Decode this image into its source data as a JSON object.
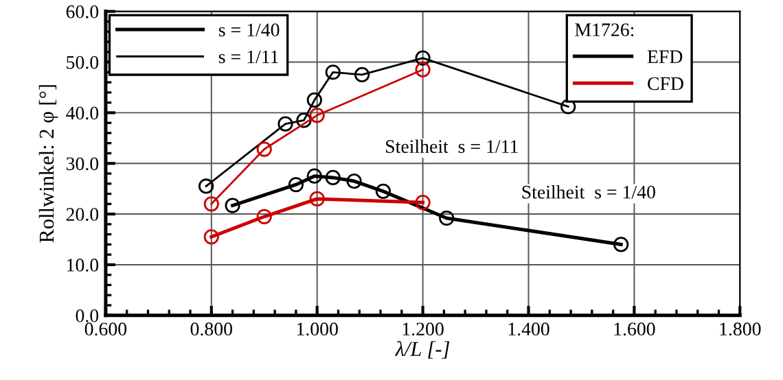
{
  "chart_data": {
    "type": "line",
    "xlabel": "λ/L [-]",
    "ylabel": "Rollwinkel: 2 φ [°]",
    "legend_title": "M1726:",
    "xlim": [
      0.6,
      1.8
    ],
    "xticks": [
      {
        "value": 0.6,
        "label": "0.600"
      },
      {
        "value": 0.8,
        "label": "0.800"
      },
      {
        "value": 1.0,
        "label": "1.000"
      },
      {
        "value": 1.2,
        "label": "1.200"
      },
      {
        "value": 1.4,
        "label": "1.400"
      },
      {
        "value": 1.6,
        "label": "1.600"
      },
      {
        "value": 1.8,
        "label": "1.800"
      }
    ],
    "ylim": [
      0,
      60
    ],
    "yticks": [
      {
        "value": 0,
        "label": "0.0"
      },
      {
        "value": 10,
        "label": "10.0"
      },
      {
        "value": 20,
        "label": "20.0"
      },
      {
        "value": 30,
        "label": "30.0"
      },
      {
        "value": 40,
        "label": "40.0"
      },
      {
        "value": 50,
        "label": "50.0"
      },
      {
        "value": 60,
        "label": "60.0"
      }
    ],
    "grid": true,
    "legend": "top left",
    "marker": "circle",
    "line_style": "solid",
    "series": [
      {
        "name": "s = 1/40",
        "color": "#000000",
        "x": [
          0.84,
          0.96,
          0.995,
          1.03,
          1.07,
          1.125,
          1.245,
          1.575
        ],
        "values": [
          21.7,
          25.8,
          27.5,
          27.2,
          26.5,
          24.5,
          19.2,
          14.0
        ]
      },
      {
        "name": "s = 1/11",
        "color": "#000000",
        "x": [
          0.79,
          0.94,
          0.975,
          0.995,
          1.03,
          1.085,
          1.2,
          1.475
        ],
        "values": [
          25.5,
          37.8,
          38.5,
          42.5,
          48.0,
          47.5,
          50.8,
          41.2
        ]
      },
      {
        "color": "#cc0000",
        "x": [
          0.8,
          0.9,
          1.0,
          1.2
        ],
        "values": [
          15.5,
          19.5,
          23.0,
          22.3
        ]
      },
      {
        "color": "#cc0000",
        "x": [
          0.8,
          0.9,
          1.0,
          1.2
        ],
        "values": [
          22.0,
          32.8,
          39.5,
          48.5
        ]
      }
    ],
    "annotations": [
      "EFD",
      "CFD",
      "Steilheit  s = 1/11",
      "Steilheit  s = 1/40"
    ]
  }
}
